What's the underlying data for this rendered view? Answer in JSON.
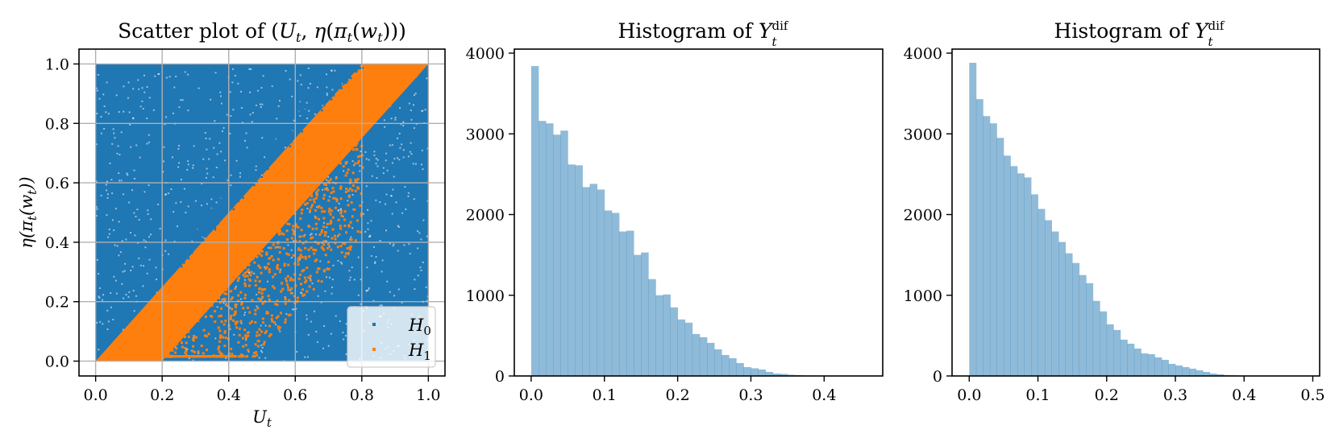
{
  "chart_data": [
    {
      "type": "scatter",
      "title": "Scatter plot of (U_t, η(π_t(w_t)))",
      "xlabel": "U_t",
      "ylabel": "η(π_t(w_t))",
      "xlim": [
        -0.05,
        1.05
      ],
      "ylim": [
        -0.05,
        1.05
      ],
      "x_ticks": [
        "0.0",
        "0.2",
        "0.4",
        "0.6",
        "0.8",
        "1.0"
      ],
      "y_ticks": [
        "0.0",
        "0.2",
        "0.4",
        "0.6",
        "0.8",
        "1.0"
      ],
      "grid": true,
      "legend_position": "bottom-right",
      "series": [
        {
          "name": "H_0",
          "color": "#1f77b4",
          "description_of_distribution": "uniform over [0,1] x [0,1]",
          "x_range": [
            0,
            1
          ],
          "y_range": [
            0,
            1
          ]
        },
        {
          "name": "H_1",
          "color": "#ff7f0e",
          "band": {
            "y_from_x_lower_offset": -0.2,
            "y_from_x_upper_offset": 0.0,
            "slope": 1.25
          },
          "corner_points": [
            [
              0.0,
              0.0
            ],
            [
              0.8,
              1.0
            ],
            [
              1.0,
              1.0
            ],
            [
              0.2,
              0.0
            ]
          ]
        }
      ]
    },
    {
      "type": "bar",
      "title": "Histogram of Y_t^dif",
      "xlim": [
        -0.023,
        0.48
      ],
      "ylim": [
        0,
        4050
      ],
      "x_ticks": [
        "0.0",
        "0.1",
        "0.2",
        "0.3",
        "0.4"
      ],
      "y_ticks": [
        "0",
        "1000",
        "2000",
        "3000",
        "4000"
      ],
      "bin_width": 0.01,
      "bin_start": 0.0,
      "color": "#1f77b4",
      "alpha": 0.5,
      "values": [
        3840,
        3160,
        3130,
        2990,
        3040,
        2620,
        2610,
        2340,
        2380,
        2310,
        2050,
        2020,
        1790,
        1800,
        1500,
        1530,
        1200,
        1000,
        1010,
        850,
        700,
        660,
        520,
        480,
        410,
        330,
        260,
        220,
        160,
        110,
        95,
        80,
        50,
        30,
        25,
        15,
        10,
        6,
        4,
        2
      ]
    },
    {
      "type": "bar",
      "title": "Histogram of Y_t^dif",
      "xlim": [
        -0.025,
        0.51
      ],
      "ylim": [
        0,
        4050
      ],
      "x_ticks": [
        "0.0",
        "0.1",
        "0.2",
        "0.3",
        "0.4",
        "0.5"
      ],
      "y_ticks": [
        "0",
        "1000",
        "2000",
        "3000",
        "4000"
      ],
      "bin_width": 0.01,
      "bin_start": 0.0,
      "color": "#1f77b4",
      "alpha": 0.5,
      "values": [
        3880,
        3430,
        3220,
        3130,
        2950,
        2730,
        2600,
        2510,
        2460,
        2250,
        2070,
        1930,
        1790,
        1660,
        1520,
        1400,
        1250,
        1150,
        930,
        800,
        640,
        570,
        450,
        400,
        340,
        280,
        270,
        230,
        200,
        150,
        130,
        110,
        90,
        70,
        50,
        30,
        20,
        12,
        8,
        4
      ]
    }
  ]
}
